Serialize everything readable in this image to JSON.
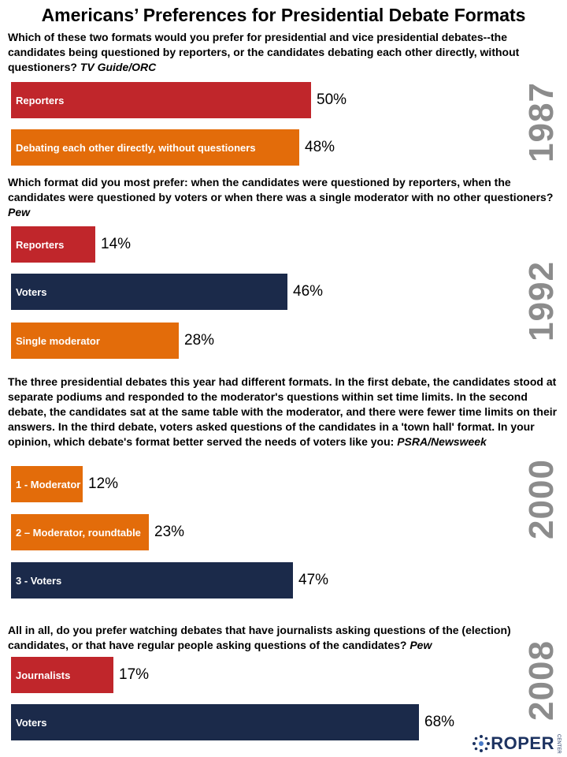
{
  "title": "Americans’ Preferences for Presidential Debate Formats",
  "colors": {
    "reporters_red": "#c0262b",
    "orange": "#e36c0a",
    "navy": "#1b2a4a",
    "year_gray": "#8c8c8c",
    "logo_blue": "#1d3361"
  },
  "logo": {
    "text": "ROPER",
    "sub": "CENTER",
    "icon": "roper-star-icon"
  },
  "chart_data": [
    {
      "type": "bar",
      "year": "1987",
      "question": "Which of these two formats would you prefer for presidential and vice presidential debates--the candidates being questioned by reporters, or the candidates debating each other directly, without questioners?",
      "source": "TV Guide/ORC",
      "categories": [
        "Reporters",
        "Debating each other directly, without questioners"
      ],
      "values": [
        50,
        48
      ],
      "labels": [
        "50%",
        "48%"
      ],
      "colors": [
        "#c0262b",
        "#e36c0a"
      ]
    },
    {
      "type": "bar",
      "year": "1992",
      "question": "Which format did you most prefer: when the candidates were questioned by reporters, when the candidates were questioned by voters or when there was a single moderator with no other questioners?",
      "source": "Pew",
      "categories": [
        "Reporters",
        "Voters",
        "Single moderator"
      ],
      "values": [
        14,
        46,
        28
      ],
      "labels": [
        "14%",
        "46%",
        "28%"
      ],
      "colors": [
        "#c0262b",
        "#1b2a4a",
        "#e36c0a"
      ]
    },
    {
      "type": "bar",
      "year": "2000",
      "question": "The three presidential debates this year had different formats. In the first debate, the candidates stood at separate podiums and responded to the moderator's questions within set time limits. In the second debate, the candidates sat at the same table with the moderator, and there were fewer time limits on their answers. In the third debate, voters asked questions of the candidates in a 'town hall' format. In your opinion, which debate's format better served the needs of voters like you:",
      "source": "PSRA/Newsweek",
      "categories": [
        "1 - Moderator",
        "2 – Moderator, roundtable",
        "3 - Voters"
      ],
      "values": [
        12,
        23,
        47
      ],
      "labels": [
        "12%",
        "23%",
        "47%"
      ],
      "colors": [
        "#e36c0a",
        "#e36c0a",
        "#1b2a4a"
      ]
    },
    {
      "type": "bar",
      "year": "2008",
      "question": "All in all, do you prefer watching debates that have journalists asking questions of the (election) candidates, or that have regular people asking questions of the candidates?",
      "source": "Pew",
      "categories": [
        "Journalists",
        "Voters"
      ],
      "values": [
        17,
        68
      ],
      "labels": [
        "17%",
        "68%"
      ],
      "colors": [
        "#c0262b",
        "#1b2a4a"
      ]
    }
  ]
}
